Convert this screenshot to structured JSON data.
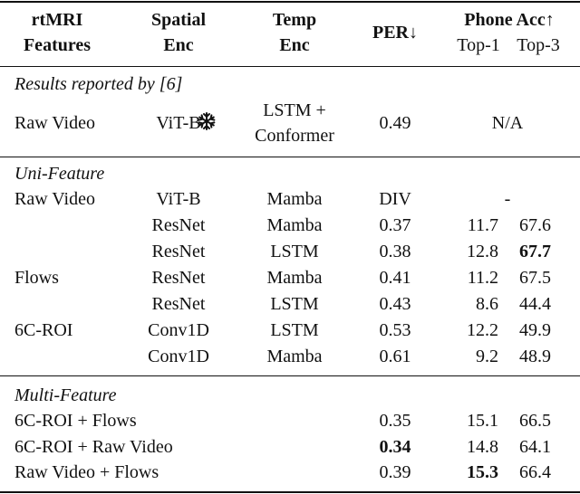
{
  "table": {
    "header": {
      "features": [
        "rtMRI",
        "Features"
      ],
      "spatial": [
        "Spatial",
        "Enc"
      ],
      "temp": [
        "Temp",
        "Enc"
      ],
      "per": "PER↓",
      "acc": "Phone Acc↑",
      "top1": "Top-1",
      "top3": "Top-3"
    },
    "sections": [
      {
        "title": "Results reported by [6]",
        "rows": [
          {
            "features": "Raw Video",
            "spatial": "ViT-B",
            "temp": [
              "LSTM +",
              "Conformer"
            ],
            "per": "0.49",
            "acc": "N/A"
          }
        ]
      },
      {
        "title": "Uni-Feature",
        "rows": [
          {
            "features": "Raw Video",
            "spatial": "ViT-B",
            "temp": "Mamba",
            "per": "DIV",
            "acc": "-"
          },
          {
            "spatial": "ResNet",
            "temp": "Mamba",
            "per": "0.37",
            "top1": "11.7",
            "top3": "67.6"
          },
          {
            "spatial": "ResNet",
            "temp": "LSTM",
            "per": "0.38",
            "top1": "12.8",
            "top3": "67.7"
          },
          {
            "features": "Flows",
            "spatial": "ResNet",
            "temp": "Mamba",
            "per": "0.41",
            "top1": "11.2",
            "top3": "67.5"
          },
          {
            "spatial": "ResNet",
            "temp": "LSTM",
            "per": "0.43",
            "top1": "8.6",
            "top3": "44.4"
          },
          {
            "features": "6C-ROI",
            "spatial": "Conv1D",
            "temp": "LSTM",
            "per": "0.53",
            "top1": "12.2",
            "top3": "49.9"
          },
          {
            "spatial": "Conv1D",
            "temp": "Mamba",
            "per": "0.61",
            "top1": "9.2",
            "top3": "48.9"
          }
        ]
      },
      {
        "title": "Multi-Feature",
        "rows": [
          {
            "features": "6C-ROI + Flows",
            "per": "0.35",
            "top1": "15.1",
            "top3": "66.5"
          },
          {
            "features": "6C-ROI + Raw Video",
            "per": "0.34",
            "top1": "14.8",
            "top3": "64.1"
          },
          {
            "features": "Raw Video + Flows",
            "per": "0.39",
            "top1": "15.3",
            "top3": "66.4"
          }
        ]
      }
    ]
  }
}
